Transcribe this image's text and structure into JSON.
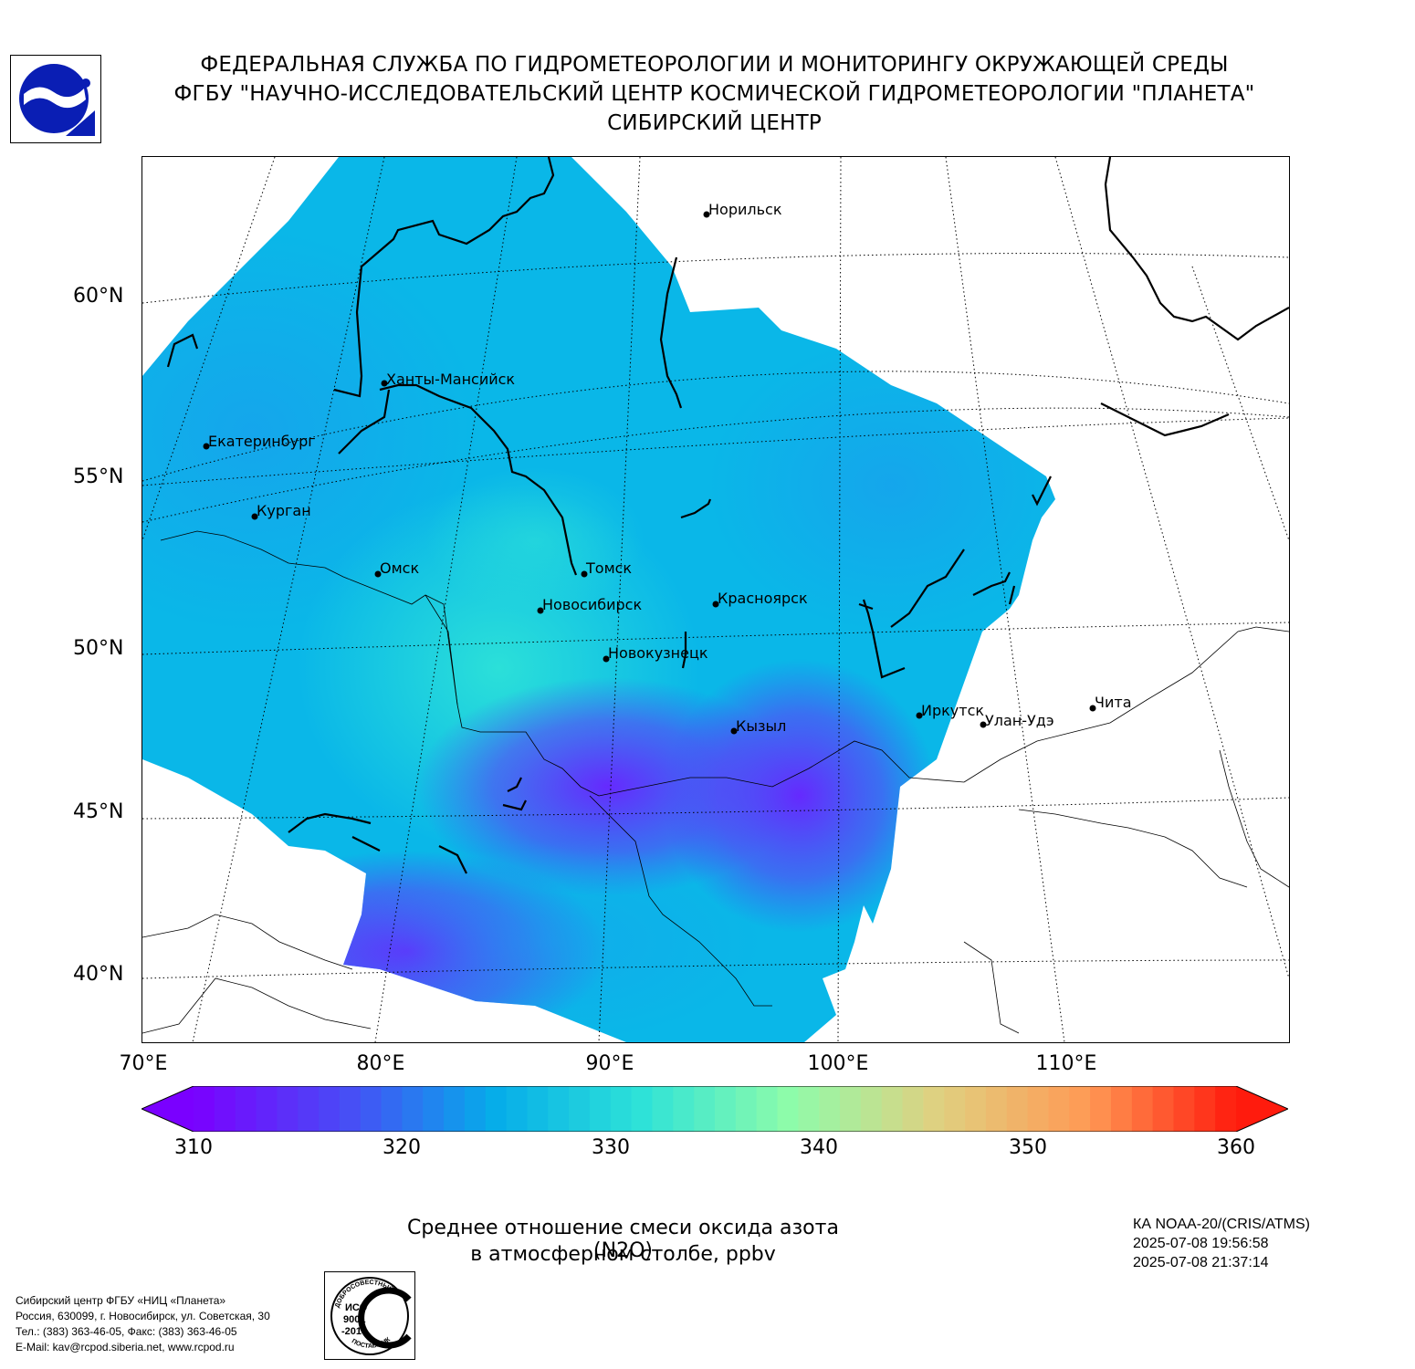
{
  "header": {
    "line1": "ФЕДЕРАЛЬНАЯ СЛУЖБА ПО ГИДРОМЕТЕОРОЛОГИИ И МОНИТОРИНГУ ОКРУЖАЮЩЕЙ СРЕДЫ",
    "line2": "ФГБУ \"НАУЧНО-ИССЛЕДОВАТЕЛЬСКИЙ ЦЕНТР КОСМИЧЕСКОЙ ГИДРОМЕТЕОРОЛОГИИ \"ПЛАНЕТА\"",
    "line3": "СИБИРСКИЙ ЦЕНТР"
  },
  "logos": {
    "left": "planeta-logo-icon",
    "iso_text": [
      "ИСО",
      "9001",
      "-2015"
    ],
    "iso_ring_top": "ДОБРОСОВЕСТНЫЙ",
    "iso_ring_bottom": "ПОСТАВЩИК"
  },
  "map": {
    "lat_labels": [
      "60°N",
      "55°N",
      "50°N",
      "45°N",
      "40°N"
    ],
    "lon_labels": [
      "70°E",
      "80°E",
      "90°E",
      "100°E",
      "110°E"
    ],
    "cities": [
      {
        "name": "Норильск"
      },
      {
        "name": "Ханты-Мансийск"
      },
      {
        "name": "Екатеринбург"
      },
      {
        "name": "Курган"
      },
      {
        "name": "Омск"
      },
      {
        "name": "Томск"
      },
      {
        "name": "Новосибирск"
      },
      {
        "name": "Красноярск"
      },
      {
        "name": "Новокузнецк"
      },
      {
        "name": "Кызыл"
      },
      {
        "name": "Иркутск"
      },
      {
        "name": "Улан-Удэ"
      },
      {
        "name": "Чита"
      }
    ]
  },
  "colorbar": {
    "ticks": [
      "310",
      "320",
      "330",
      "340",
      "350",
      "360"
    ],
    "min": 310,
    "max": 360,
    "colors": [
      "#7a00ff",
      "#4a4af6",
      "#05abea",
      "#2de2d8",
      "#8efcaa",
      "#e0d080",
      "#ff9a55",
      "#ff1b0d"
    ]
  },
  "caption": {
    "line1": "Среднее отношение смеси оксида азота (N2O)",
    "line2": "в атмосферном столбе, ppbv"
  },
  "satellite": {
    "line1": "КА NOAA-20/(CRIS/ATMS)",
    "line2": "2025-07-08 19:56:58",
    "line3": "2025-07-08 21:37:14"
  },
  "org": {
    "line1": "Сибирский центр ФГБУ «НИЦ «Планета»",
    "line2": "Россия, 630099, г. Новосибирск, ул. Советская, 30",
    "line3": "Тел.: (383) 363-46-05, Факс: (383) 363-46-05",
    "line4": "E-Mail: kav@rcpod.siberia.net, www.rcpod.ru"
  }
}
